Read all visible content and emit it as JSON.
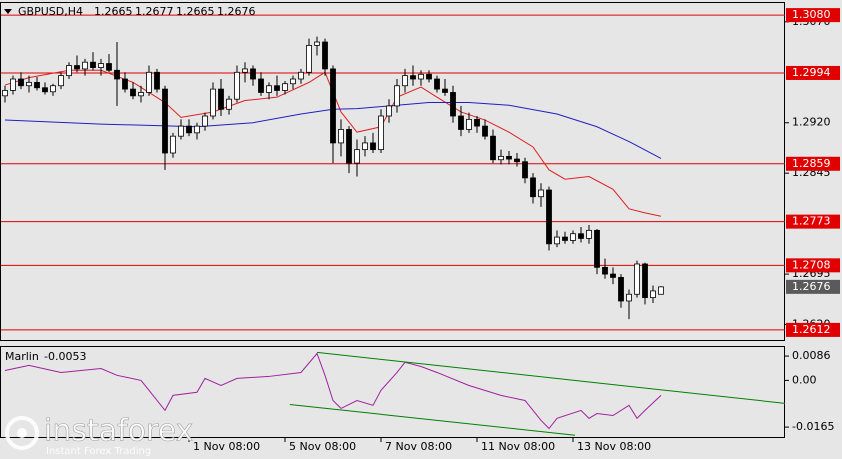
{
  "chart_data": [
    {
      "type": "candlestick",
      "symbol": "GBPUSD,H4",
      "categories": [
        null,
        null,
        null,
        null,
        null,
        null,
        null,
        null,
        null,
        null,
        null,
        null,
        null,
        null,
        null,
        null,
        null,
        null,
        null,
        null,
        null,
        null,
        null,
        "1 Nov 08:00",
        null,
        null,
        null,
        null,
        null,
        null,
        null,
        null,
        null,
        null,
        null,
        "5 Nov 08:00",
        null,
        null,
        null,
        null,
        null,
        null,
        null,
        null,
        null,
        null,
        null,
        "7 Nov 08:00",
        null,
        null,
        null,
        null,
        null,
        null,
        null,
        null,
        null,
        null,
        null,
        "11 Nov 08:00",
        null,
        null,
        null,
        null,
        null,
        null,
        null,
        null,
        null,
        null,
        null,
        "13 Nov 08:00",
        null,
        null,
        null,
        null,
        null,
        null,
        null,
        null,
        null,
        null,
        null
      ],
      "open": [
        1.296,
        1.2968,
        1.2985,
        1.2975,
        1.298,
        1.2972,
        1.2966,
        1.2975,
        1.299,
        1.3005,
        1.3,
        1.301,
        1.3002,
        1.3008,
        1.2998,
        1.2985,
        1.297,
        1.296,
        1.2965,
        1.2995,
        1.297,
        1.2875,
        1.29,
        1.2915,
        1.2905,
        1.2915,
        1.293,
        1.297,
        1.294,
        1.2955,
        1.2995,
        1.3,
        1.2985,
        1.2965,
        1.2975,
        1.2968,
        1.2978,
        1.2985,
        1.2995,
        1.3035,
        1.304,
        1.3,
        1.289,
        1.291,
        1.286,
        1.288,
        1.289,
        1.288,
        1.293,
        1.2945,
        1.2975,
        1.299,
        1.2985,
        1.2992,
        1.2985,
        1.297,
        1.2965,
        1.293,
        1.291,
        1.2925,
        1.2915,
        1.29,
        1.2865,
        1.287,
        1.2866,
        1.2862,
        1.2838,
        1.281,
        1.282,
        1.274,
        1.275,
        1.2745,
        1.2755,
        1.2748,
        1.276,
        1.2705,
        1.2695,
        1.269,
        1.2655,
        1.2665,
        1.271,
        1.266,
        1.2665
      ],
      "high": [
        1.2975,
        1.299,
        1.2995,
        1.299,
        1.2988,
        1.298,
        1.2978,
        1.2995,
        1.301,
        1.302,
        1.3015,
        1.3025,
        1.3015,
        1.3022,
        1.304,
        1.2995,
        1.298,
        1.2975,
        1.3005,
        1.3,
        1.2975,
        1.2905,
        1.2925,
        1.2925,
        1.292,
        1.2935,
        1.298,
        1.2985,
        1.296,
        1.3005,
        1.301,
        1.3005,
        1.2995,
        1.298,
        1.299,
        1.2982,
        1.299,
        1.3,
        1.3045,
        1.3048,
        1.3045,
        1.3005,
        1.2925,
        1.2915,
        1.2895,
        1.29,
        1.2905,
        1.294,
        1.2955,
        1.2985,
        1.3,
        1.3005,
        1.2998,
        1.2998,
        1.299,
        1.2985,
        1.2975,
        1.2945,
        1.2935,
        1.293,
        1.2925,
        1.291,
        1.288,
        1.2878,
        1.2875,
        1.2868,
        1.2845,
        1.283,
        1.2825,
        1.276,
        1.2758,
        1.276,
        1.2765,
        1.2768,
        1.2762,
        1.2718,
        1.2705,
        1.2695,
        1.2672,
        1.2715,
        1.2712,
        1.2678,
        1.2677
      ],
      "low": [
        1.295,
        1.2962,
        1.297,
        1.2965,
        1.2968,
        1.2962,
        1.296,
        1.297,
        1.2985,
        1.2995,
        1.299,
        1.2998,
        1.299,
        1.2995,
        1.2945,
        1.2965,
        1.2955,
        1.295,
        1.296,
        1.2965,
        1.285,
        1.2868,
        1.2895,
        1.29,
        1.2895,
        1.2908,
        1.2925,
        1.293,
        1.2932,
        1.295,
        1.298,
        1.2975,
        1.296,
        1.2955,
        1.296,
        1.2962,
        1.297,
        1.2978,
        1.299,
        1.302,
        1.299,
        1.286,
        1.287,
        1.2845,
        1.284,
        1.287,
        1.2875,
        1.2875,
        1.292,
        1.2935,
        1.2965,
        1.2975,
        1.2975,
        1.298,
        1.2965,
        1.296,
        1.292,
        1.29,
        1.2905,
        1.2905,
        1.2895,
        1.286,
        1.2858,
        1.2858,
        1.2855,
        1.283,
        1.28,
        1.2795,
        1.273,
        1.2735,
        1.274,
        1.274,
        1.2742,
        1.274,
        1.2695,
        1.2688,
        1.268,
        1.2645,
        1.2628,
        1.266,
        1.265,
        1.2652,
        1.2665
      ],
      "close": [
        1.2968,
        1.2985,
        1.2975,
        1.298,
        1.2972,
        1.2966,
        1.2975,
        1.299,
        1.3005,
        1.3,
        1.301,
        1.3002,
        1.3008,
        1.2998,
        1.2985,
        1.297,
        1.296,
        1.2965,
        1.2995,
        1.297,
        1.2875,
        1.29,
        1.2915,
        1.2905,
        1.2915,
        1.293,
        1.297,
        1.294,
        1.2955,
        1.2995,
        1.3,
        1.2985,
        1.2965,
        1.2975,
        1.2968,
        1.2978,
        1.2985,
        1.2995,
        1.3035,
        1.304,
        1.3,
        1.289,
        1.291,
        1.286,
        1.288,
        1.289,
        1.288,
        1.293,
        1.2945,
        1.2975,
        1.299,
        1.2985,
        1.2992,
        1.2985,
        1.297,
        1.2965,
        1.293,
        1.291,
        1.2925,
        1.2915,
        1.29,
        1.2865,
        1.287,
        1.2866,
        1.2862,
        1.2838,
        1.281,
        1.282,
        1.274,
        1.275,
        1.2745,
        1.2755,
        1.2748,
        1.276,
        1.2705,
        1.2695,
        1.269,
        1.2655,
        1.2665,
        1.271,
        1.266,
        1.267,
        1.2676
      ],
      "up_color": "#ffffff",
      "down_color": "#000000",
      "wick_color": "#000000",
      "series": [
        {
          "color": "#e02020",
          "x": [
            0,
            3,
            8,
            12,
            16,
            20,
            22,
            26,
            30,
            34,
            38,
            40,
            42,
            44,
            47,
            49,
            52,
            54,
            57,
            60,
            63,
            66,
            68,
            70,
            73,
            76,
            78,
            80,
            82
          ],
          "values": [
            1.2976,
            1.2987,
            1.2998,
            1.2998,
            1.298,
            1.295,
            1.2928,
            1.2936,
            1.2953,
            1.2958,
            1.298,
            1.2995,
            1.2936,
            1.2906,
            1.2914,
            1.2958,
            1.2973,
            1.2958,
            1.2936,
            1.2924,
            1.2906,
            1.2884,
            1.285,
            1.2836,
            1.284,
            1.2821,
            1.2792,
            1.2786,
            1.2781
          ]
        },
        {
          "color": "#2020c0",
          "x": [
            0,
            12,
            24,
            31,
            37,
            41,
            44,
            49,
            53,
            58,
            63,
            69,
            74,
            78,
            82
          ],
          "values": [
            1.2924,
            1.2918,
            1.2914,
            1.292,
            1.2933,
            1.294,
            1.2941,
            1.2946,
            1.295,
            1.295,
            1.2946,
            1.2933,
            1.2914,
            1.2892,
            1.2867
          ]
        }
      ],
      "levels": [
        {
          "value": 1.308,
          "label": "1.3080"
        },
        1.2994,
        1.2859,
        1.2773,
        1.2708,
        1.2612
      ],
      "level_color": "#e00000",
      "last_price_color": "#5a5a5a",
      "ylim": [
        1.2597,
        1.3098
      ],
      "yticks": [
        {
          "value": 1.307,
          "label": "1.3070"
        },
        {
          "value": 1.292,
          "label": "1.2920"
        },
        1.2845,
        1.2695,
        {
          "value": 1.262,
          "label": "1.2620"
        }
      ]
    },
    {
      "type": "line",
      "title": "Marlin",
      "series": [
        {
          "color": "#a020a0",
          "x": [
            0,
            3,
            7,
            12,
            14,
            17,
            18,
            20,
            21,
            24,
            25,
            27,
            29,
            33,
            37,
            39,
            40,
            41,
            42,
            44,
            46,
            47,
            49,
            50,
            52,
            54,
            58,
            62,
            65,
            67,
            68,
            69,
            72,
            73,
            74,
            76,
            78,
            79,
            80,
            82
          ],
          "values": [
            0.0035,
            0.0053,
            0.0028,
            0.0042,
            0.0018,
            0,
            -0.0035,
            -0.0106,
            -0.0053,
            -0.0042,
            0.0007,
            -0.0018,
            0.0007,
            0.0014,
            0.0028,
            0.0095,
            0.0018,
            -0.0071,
            -0.0099,
            -0.0071,
            -0.0088,
            -0.0035,
            0.0028,
            0.0064,
            0.0049,
            0.0028,
            -0.0018,
            -0.0053,
            -0.0071,
            -0.0141,
            -0.017,
            -0.0134,
            -0.0106,
            -0.0134,
            -0.0117,
            -0.0124,
            -0.0088,
            -0.0134,
            -0.0106,
            -0.0053
          ]
        },
        {
          "color": "#008000",
          "x": [
            39,
            97.5
          ],
          "values": [
            0.0099,
            -0.0081
          ]
        },
        {
          "color": "#008000",
          "x": [
            35.6,
            71.25
          ],
          "values": [
            -0.0085,
            -0.0194
          ]
        }
      ],
      "ylim": [
        -0.02,
        0.0118
      ],
      "yticks": [
        0.0086,
        {
          "value": 0,
          "label": "0.00"
        },
        -0.0165
      ]
    }
  ],
  "watermark": {
    "brand": "instaforex",
    "tagline": "Instant Forex Trading"
  }
}
